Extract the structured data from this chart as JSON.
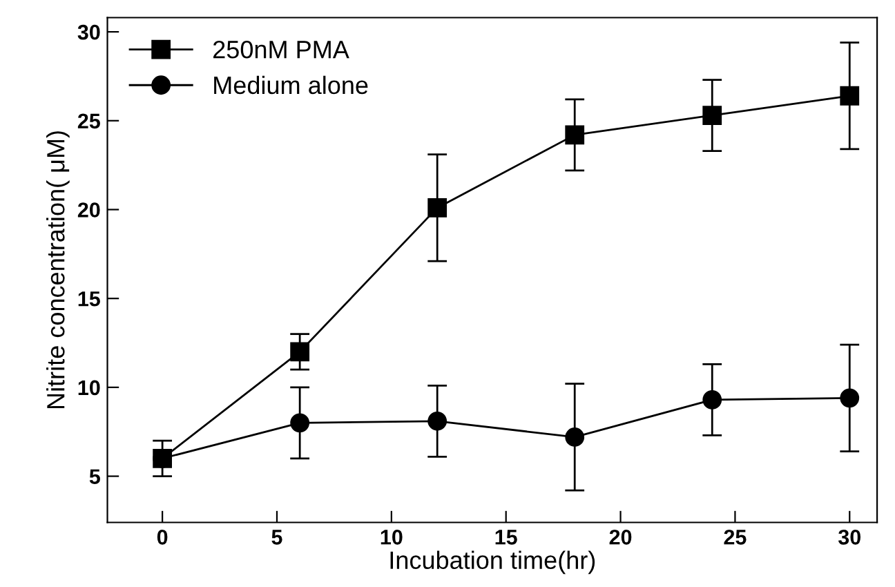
{
  "chart_data": {
    "type": "line",
    "xlabel": "Incubation time(hr)",
    "ylabel": "Nitrite concentration( μM)",
    "x": [
      0,
      6,
      12,
      18,
      24,
      30
    ],
    "series": [
      {
        "name": "250nM PMA",
        "color": "#000000",
        "marker": "square",
        "values": [
          6,
          12,
          20.1,
          24.2,
          25.3,
          26.4
        ],
        "errors": [
          1,
          1,
          3,
          2,
          2,
          3
        ]
      },
      {
        "name": "Medium alone",
        "color": "#000000",
        "marker": "circle",
        "values": [
          6,
          8,
          8.1,
          7.2,
          9.3,
          9.4
        ],
        "errors": [
          null,
          2,
          2,
          3,
          2,
          3
        ]
      }
    ],
    "xlim": [
      -2.4,
      31.2
    ],
    "xticks": [
      0,
      5,
      10,
      15,
      20,
      25,
      30
    ],
    "ylim": [
      2.4,
      30.8
    ],
    "yticks": [
      5,
      10,
      15,
      20,
      25,
      30
    ],
    "grid": false,
    "legend": "top left",
    "line_style": "solid"
  }
}
